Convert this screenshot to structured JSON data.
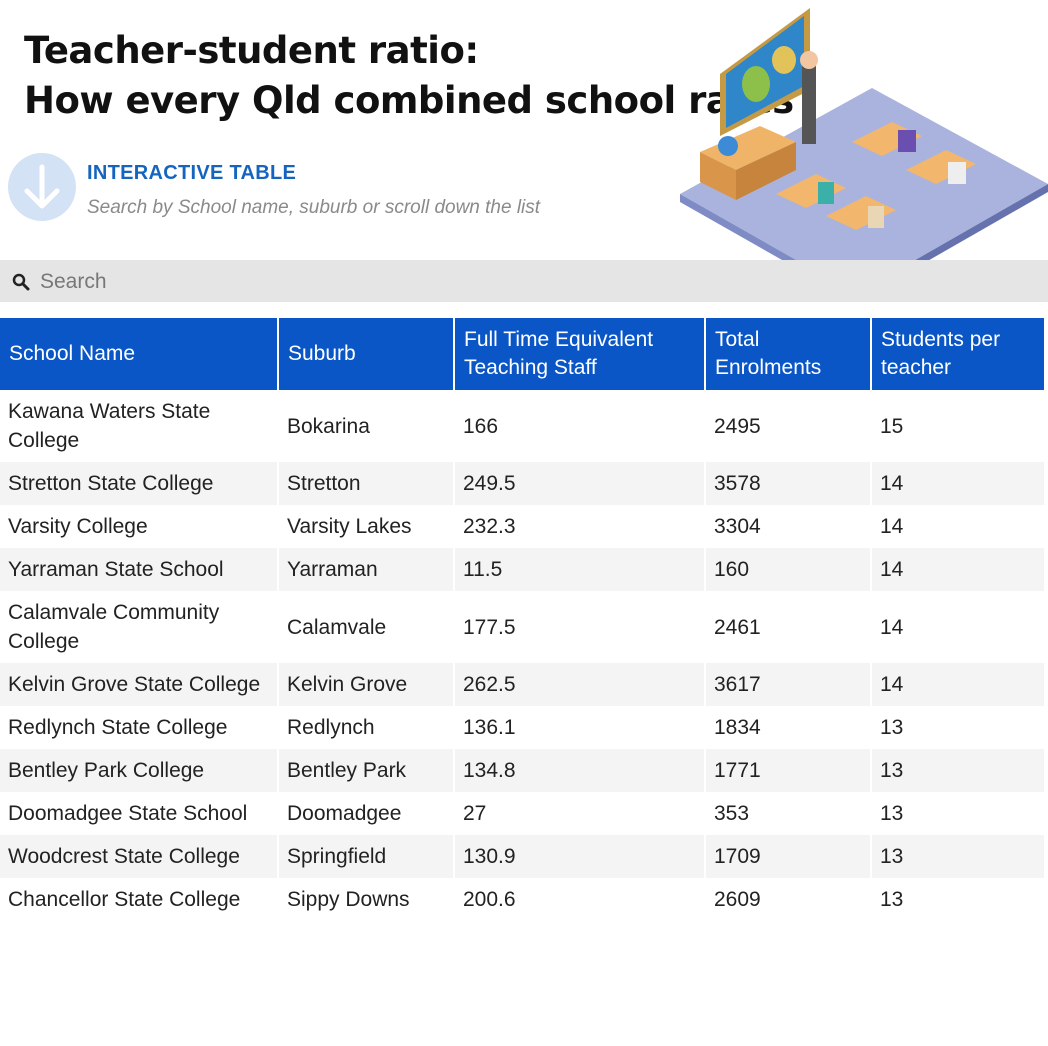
{
  "header": {
    "title": [
      "Teacher-student ratio:",
      "How every Qld combined school rates"
    ]
  },
  "intro": {
    "label": "INTERACTIVE TABLE",
    "hint": "Search by School name, suburb or scroll down the list"
  },
  "search": {
    "placeholder": "Search"
  },
  "table": {
    "columns": [
      "School Name",
      "Suburb",
      "Full Time Equivalent Teaching Staff",
      "Total Enrolments",
      "Students per teacher"
    ],
    "rows": [
      [
        "Kawana Waters State College",
        "Bokarina",
        166,
        2495,
        15
      ],
      [
        "Stretton State College",
        "Stretton",
        249.5,
        3578,
        14
      ],
      [
        "Varsity College",
        "Varsity Lakes",
        232.3,
        3304,
        14
      ],
      [
        "Yarraman State School",
        "Yarraman",
        11.5,
        160,
        14
      ],
      [
        "Calamvale Community College",
        "Calamvale",
        177.5,
        2461,
        14
      ],
      [
        "Kelvin Grove State College",
        "Kelvin Grove",
        262.5,
        3617,
        14
      ],
      [
        "Redlynch State College",
        "Redlynch",
        136.1,
        1834,
        13
      ],
      [
        "Bentley Park College",
        "Bentley Park",
        134.8,
        1771,
        13
      ],
      [
        "Doomadgee State School",
        "Doomadgee",
        27,
        353,
        13
      ],
      [
        "Woodcrest State College",
        "Springfield",
        130.9,
        1709,
        13
      ],
      [
        "Chancellor State College",
        "Sippy Downs",
        200.6,
        2609,
        13
      ]
    ]
  }
}
